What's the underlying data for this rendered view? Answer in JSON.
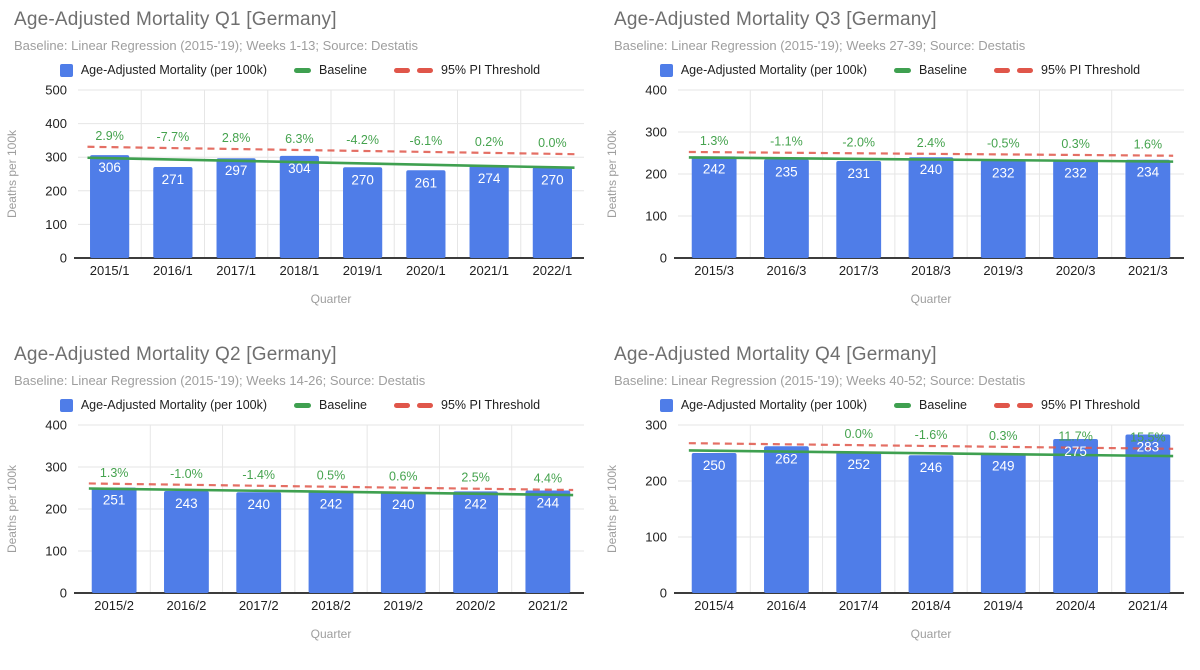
{
  "colors": {
    "bar": "#4f7de8",
    "baseline": "#3fa050",
    "threshold": "#e0564a",
    "pct_text": "#45a34e",
    "grid": "#e6e6e6",
    "zero_axis": "#3c3c3c",
    "tick_text": "#1f1f1f",
    "axis_label": "#9e9e9e",
    "title": "#6f6f6f",
    "subtitle": "#9e9e9e",
    "bar_value_text": "#ffffff"
  },
  "chart_data": [
    {
      "id": "q1",
      "type": "bar",
      "title": "Age-Adjusted Mortality Q1 [Germany]",
      "subtitle": "Baseline: Linear Regression (2015-'19); Weeks 1-13; Source: Destatis",
      "legend": [
        {
          "label": "Age-Adjusted Mortality (per 100k)",
          "kind": "square"
        },
        {
          "label": "Baseline",
          "kind": "line"
        },
        {
          "label": "95% PI Threshold",
          "kind": "dashes"
        }
      ],
      "legend_position": "top",
      "grid": true,
      "categories": [
        "2015/1",
        "2016/1",
        "2017/1",
        "2018/1",
        "2019/1",
        "2020/1",
        "2021/1",
        "2022/1"
      ],
      "values": [
        306,
        271,
        297,
        304,
        270,
        261,
        274,
        270
      ],
      "pct_labels": [
        "2.9%",
        "-7.7%",
        "2.8%",
        "6.3%",
        "-4.2%",
        "-6.1%",
        "0.2%",
        "0.0%"
      ],
      "baseline": {
        "start": 297,
        "end": 270
      },
      "threshold": {
        "start": 330,
        "end": 310
      },
      "ylim": [
        0,
        500
      ],
      "yticks": [
        0,
        100,
        200,
        300,
        400,
        500
      ],
      "xlabel": "Quarter",
      "ylabel": "Deaths per 100k"
    },
    {
      "id": "q3",
      "type": "bar",
      "title": "Age-Adjusted Mortality Q3 [Germany]",
      "subtitle": "Baseline: Linear Regression (2015-'19); Weeks 27-39; Source: Destatis",
      "legend": [
        {
          "label": "Age-Adjusted Mortality (per 100k)",
          "kind": "square"
        },
        {
          "label": "Baseline",
          "kind": "line"
        },
        {
          "label": "95% PI Threshold",
          "kind": "dashes"
        }
      ],
      "legend_position": "top",
      "grid": true,
      "categories": [
        "2015/3",
        "2016/3",
        "2017/3",
        "2018/3",
        "2019/3",
        "2020/3",
        "2021/3"
      ],
      "values": [
        242,
        235,
        231,
        240,
        232,
        232,
        234
      ],
      "pct_labels": [
        "1.3%",
        "-1.1%",
        "-2.0%",
        "2.4%",
        "-0.5%",
        "0.3%",
        "1.6%"
      ],
      "baseline": {
        "start": 239,
        "end": 230
      },
      "threshold": {
        "start": 252,
        "end": 244
      },
      "ylim": [
        0,
        400
      ],
      "yticks": [
        0,
        100,
        200,
        300,
        400
      ],
      "xlabel": "Quarter",
      "ylabel": "Deaths per 100k"
    },
    {
      "id": "q2",
      "type": "bar",
      "title": "Age-Adjusted Mortality Q2 [Germany]",
      "subtitle": "Baseline: Linear Regression (2015-'19); Weeks 14-26; Source: Destatis",
      "legend": [
        {
          "label": "Age-Adjusted Mortality (per 100k)",
          "kind": "square"
        },
        {
          "label": "Baseline",
          "kind": "line"
        },
        {
          "label": "95% PI Threshold",
          "kind": "dashes"
        }
      ],
      "legend_position": "top",
      "grid": true,
      "categories": [
        "2015/2",
        "2016/2",
        "2017/2",
        "2018/2",
        "2019/2",
        "2020/2",
        "2021/2"
      ],
      "values": [
        251,
        243,
        240,
        242,
        240,
        242,
        244
      ],
      "pct_labels": [
        "1.3%",
        "-1.0%",
        "-1.4%",
        "0.5%",
        "0.6%",
        "2.5%",
        "4.4%"
      ],
      "baseline": {
        "start": 248,
        "end": 234
      },
      "threshold": {
        "start": 260,
        "end": 246
      },
      "ylim": [
        0,
        400
      ],
      "yticks": [
        0,
        100,
        200,
        300,
        400
      ],
      "xlabel": "Quarter",
      "ylabel": "Deaths per 100k"
    },
    {
      "id": "q4",
      "type": "bar",
      "title": "Age-Adjusted Mortality Q4 [Germany]",
      "subtitle": "Baseline: Linear Regression (2015-'19); Weeks 40-52; Source: Destatis",
      "legend": [
        {
          "label": "Age-Adjusted Mortality (per 100k)",
          "kind": "square"
        },
        {
          "label": "Baseline",
          "kind": "line"
        },
        {
          "label": "95% PI Threshold",
          "kind": "dashes"
        }
      ],
      "legend_position": "top",
      "grid": true,
      "categories": [
        "2015/4",
        "2016/4",
        "2017/4",
        "2018/4",
        "2019/4",
        "2020/4",
        "2021/4"
      ],
      "values": [
        250,
        262,
        252,
        246,
        249,
        275,
        283
      ],
      "pct_labels": [
        null,
        null,
        "0.0%",
        "-1.6%",
        "0.3%",
        "11.7%",
        "15.5%"
      ],
      "baseline": {
        "start": 254,
        "end": 245
      },
      "threshold": {
        "start": 267,
        "end": 258
      },
      "ylim": [
        0,
        300
      ],
      "yticks": [
        0,
        100,
        200,
        300
      ],
      "xlabel": "Quarter",
      "ylabel": "Deaths per 100k"
    }
  ]
}
